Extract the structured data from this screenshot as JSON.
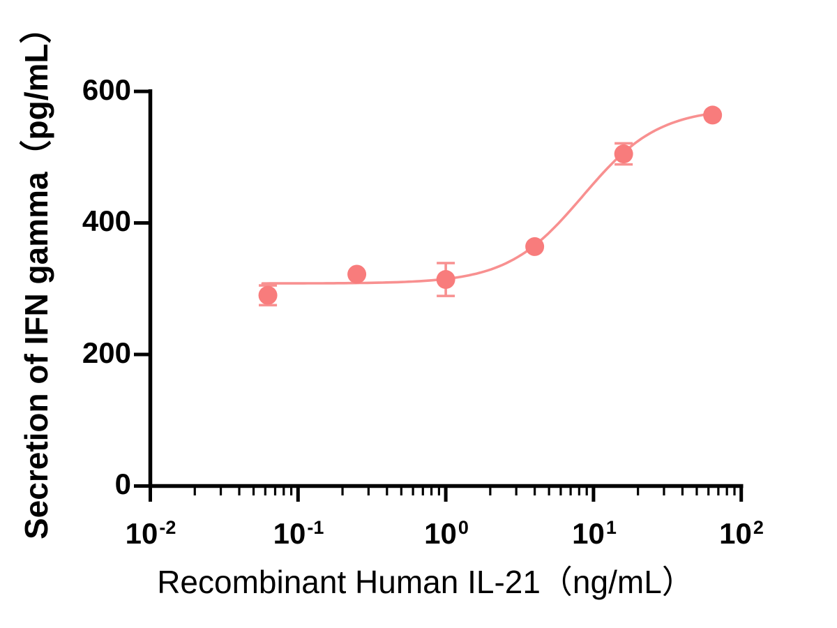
{
  "chart_data": {
    "type": "scatter",
    "title": "",
    "xlabel": "Recombinant Human IL-21（ng/mL）",
    "ylabel": "Secretion of IFN gamma（pg/mL）",
    "x_scale": "log10",
    "x_range": [
      0.01,
      100
    ],
    "y_range": [
      0,
      600
    ],
    "grid": "off",
    "legend": "none",
    "y_tick_values": [
      0,
      200,
      400,
      600
    ],
    "y_tick_labels": [
      "0",
      "200",
      "400",
      "600"
    ],
    "x_tick_values": [
      0.01,
      0.1,
      1,
      10,
      100
    ],
    "x_tick_labels": [
      {
        "base": "10",
        "exp": "-2"
      },
      {
        "base": "10",
        "exp": "-1"
      },
      {
        "base": "10",
        "exp": "0"
      },
      {
        "base": "10",
        "exp": "1"
      },
      {
        "base": "10",
        "exp": "2"
      }
    ],
    "series": [
      {
        "name": "IFN gamma secretion",
        "x": [
          0.0625,
          0.25,
          1,
          4,
          16,
          64
        ],
        "y": [
          290,
          322,
          314,
          364,
          505,
          564
        ],
        "sd": [
          15,
          0,
          25,
          0,
          16,
          0
        ],
        "marker": "circle",
        "marker_color": "#F87C7C",
        "line_color": "#F89090"
      }
    ],
    "fit_curve": {
      "model": "4PL",
      "bottom": 308,
      "top": 575,
      "ec50": 8.5,
      "hill": 1.7,
      "x_start": 0.0575,
      "x_end": 64
    },
    "colors": {
      "axis": "#000000",
      "accent": "#F87C7C",
      "background": "#FFFFFF"
    }
  }
}
